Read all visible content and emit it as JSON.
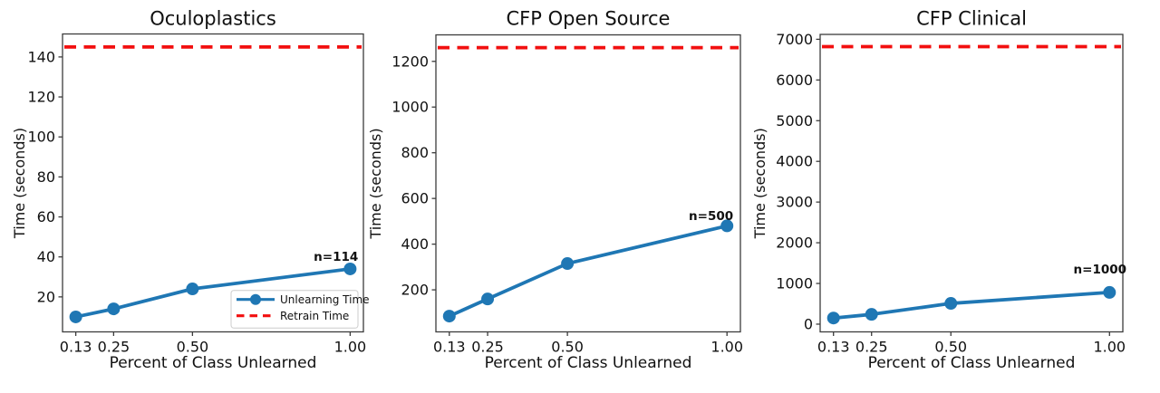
{
  "figure": {
    "background": "#ffffff",
    "text_color": "#111111",
    "spine_color": "#3c3c3c",
    "unlearning_color": "#1f77b4",
    "retrain_color": "#f20f0f"
  },
  "chart_data": [
    {
      "type": "line",
      "title": "Oculoplastics",
      "xlabel": "Percent of Class Unlearned",
      "ylabel": "Time (seconds)",
      "x": [
        0.13,
        0.25,
        0.5,
        1.0
      ],
      "xticklabels": [
        "0.13",
        "0.25",
        "0.50",
        "1.00"
      ],
      "yticks": [
        20,
        40,
        60,
        80,
        100,
        120,
        140
      ],
      "xlim": [
        0.088,
        1.042
      ],
      "ylim": [
        2.5,
        151.5
      ],
      "grid": false,
      "series": [
        {
          "name": "Unlearning Time",
          "style": "solid-marker",
          "color": "#1f77b4",
          "values": [
            10,
            14,
            24,
            34
          ]
        },
        {
          "name": "Retrain Time",
          "style": "dashed-hline",
          "color": "#f20f0f",
          "value": 145
        }
      ],
      "annotation": {
        "text": "n=114",
        "x": 0.955,
        "y": 38
      },
      "legend": {
        "visible": true,
        "position": "lower right",
        "items": [
          "Unlearning Time",
          "Retrain Time"
        ]
      }
    },
    {
      "type": "line",
      "title": "CFP Open Source",
      "xlabel": "Percent of Class Unlearned",
      "ylabel": "Time (seconds)",
      "x": [
        0.13,
        0.25,
        0.5,
        1.0
      ],
      "xticklabels": [
        "0.13",
        "0.25",
        "0.50",
        "1.00"
      ],
      "yticks": [
        200,
        400,
        600,
        800,
        1000,
        1200
      ],
      "xlim": [
        0.088,
        1.042
      ],
      "ylim": [
        16,
        1316
      ],
      "grid": false,
      "series": [
        {
          "name": "Unlearning Time",
          "style": "solid-marker",
          "color": "#1f77b4",
          "values": [
            85,
            160,
            315,
            480
          ]
        },
        {
          "name": "Retrain Time",
          "style": "dashed-hline",
          "color": "#f20f0f",
          "value": 1260
        }
      ],
      "annotation": {
        "text": "n=500",
        "x": 0.95,
        "y": 505
      },
      "legend": {
        "visible": false,
        "position": "lower right",
        "items": []
      }
    },
    {
      "type": "line",
      "title": "CFP Clinical",
      "xlabel": "Percent of Class Unlearned",
      "ylabel": "Time (seconds)",
      "x": [
        0.13,
        0.25,
        0.5,
        1.0
      ],
      "xticklabels": [
        "0.13",
        "0.25",
        "0.50",
        "1.00"
      ],
      "yticks": [
        0,
        1000,
        2000,
        3000,
        4000,
        5000,
        6000,
        7000
      ],
      "xlim": [
        0.088,
        1.042
      ],
      "ylim": [
        -190,
        7120
      ],
      "grid": false,
      "series": [
        {
          "name": "Unlearning Time",
          "style": "solid-marker",
          "color": "#1f77b4",
          "values": [
            150,
            240,
            510,
            780
          ]
        },
        {
          "name": "Retrain Time",
          "style": "dashed-hline",
          "color": "#f20f0f",
          "value": 6820
        }
      ],
      "annotation": {
        "text": "n=1000",
        "x": 0.97,
        "y": 1245
      },
      "legend": {
        "visible": false,
        "position": "lower right",
        "items": []
      }
    }
  ]
}
